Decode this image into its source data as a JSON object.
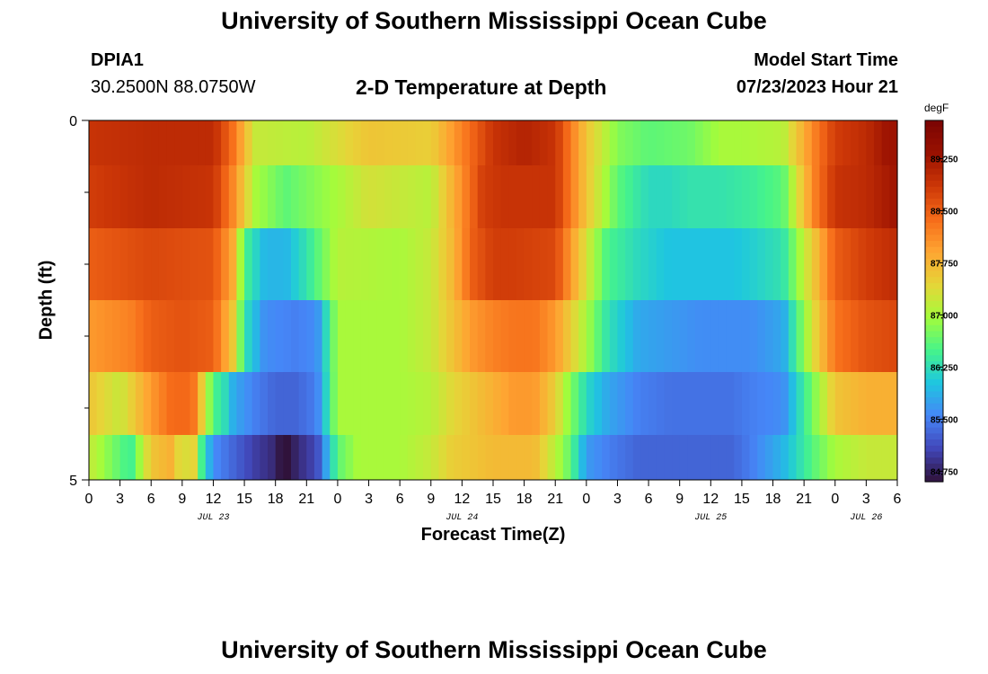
{
  "header": {
    "title": "University of Southern Mississippi Ocean Cube",
    "station": "DPIA1",
    "coords": "30.2500N  88.0750W",
    "subtitle": "2-D Temperature at Depth",
    "start_label": "Model Start Time",
    "start_value": "07/23/2023 Hour 21",
    "footer_title": "University of Southern Mississippi Ocean Cube"
  },
  "chart_data": {
    "type": "heatmap",
    "title": "2-D Temperature at Depth",
    "xlabel": "Forecast Time(Z)",
    "ylabel": "Depth (ft)",
    "x_ticks": [
      "0",
      "3",
      "6",
      "9",
      "12",
      "15",
      "18",
      "21",
      "0",
      "3",
      "6",
      "9",
      "12",
      "15",
      "18",
      "21",
      "0",
      "3",
      "6",
      "9",
      "12",
      "15",
      "18",
      "21",
      "0",
      "3",
      "6"
    ],
    "date_labels": [
      {
        "label": "JUL 23",
        "hour": 12
      },
      {
        "label": "JUL 24",
        "hour": 36
      },
      {
        "label": "JUL 25",
        "hour": 60
      },
      {
        "label": "JUL 26",
        "hour": 75
      }
    ],
    "x_range_hours": [
      0,
      78
    ],
    "y_range_ft": [
      0,
      5
    ],
    "y_ticks": [
      "0",
      "5"
    ],
    "depth_rows_ft": [
      0.25,
      1.0,
      2.0,
      3.0,
      4.0,
      4.75
    ],
    "colorbar": {
      "unit": "degF",
      "ticks": [
        "89.250",
        "88.500",
        "87.750",
        "87.000",
        "86.250",
        "85.500",
        "84.750"
      ],
      "range": [
        84.6,
        89.8
      ]
    },
    "row_profiles": [
      {
        "depth_ft": 0.25,
        "hours": [
          0,
          6,
          12,
          14,
          16,
          21,
          27,
          33,
          36,
          39,
          42,
          45,
          48,
          51,
          54,
          58,
          61,
          63,
          67,
          70,
          72,
          75,
          77
        ],
        "values": [
          88.9,
          89.0,
          89.0,
          88.3,
          87.2,
          87.1,
          87.6,
          87.5,
          88.2,
          88.9,
          89.1,
          88.9,
          87.6,
          86.8,
          86.6,
          86.7,
          87.0,
          87.0,
          87.1,
          88.2,
          88.8,
          89.0,
          89.3
        ]
      },
      {
        "depth_ft": 1.0,
        "hours": [
          0,
          6,
          12,
          14,
          16,
          19,
          24,
          27,
          33,
          36,
          38,
          40,
          45,
          48,
          51,
          54,
          56,
          58,
          61,
          64,
          67,
          70,
          72,
          75,
          78
        ],
        "values": [
          88.8,
          89.0,
          88.9,
          88.1,
          87.0,
          86.6,
          87.0,
          87.3,
          87.1,
          88.1,
          88.8,
          88.9,
          88.9,
          87.6,
          86.6,
          86.2,
          86.2,
          86.3,
          86.3,
          86.4,
          86.6,
          88.2,
          88.9,
          89.0,
          89.3
        ]
      },
      {
        "depth_ft": 2.0,
        "hours": [
          0,
          6,
          12,
          14,
          15,
          17,
          19,
          21,
          24,
          30,
          33,
          35,
          37,
          39,
          41,
          45,
          48,
          50,
          53,
          56,
          59,
          62,
          64,
          67,
          70,
          72,
          75,
          78
        ],
        "values": [
          88.5,
          88.7,
          88.6,
          87.8,
          86.5,
          85.9,
          85.9,
          86.3,
          87.1,
          87.0,
          87.2,
          87.7,
          88.5,
          88.8,
          88.8,
          88.7,
          87.3,
          86.5,
          86.2,
          86.0,
          86.0,
          86.0,
          86.1,
          86.3,
          87.6,
          88.5,
          88.8,
          89.0
        ]
      },
      {
        "depth_ft": 3.0,
        "hours": [
          0,
          4,
          6,
          9,
          12,
          14,
          15,
          17,
          20,
          22,
          24,
          27,
          30,
          33,
          35,
          37,
          39,
          41,
          43,
          45,
          48,
          50,
          53,
          56,
          59,
          62,
          64,
          67,
          70,
          72,
          75,
          78
        ],
        "values": [
          88.0,
          88.2,
          88.5,
          88.6,
          88.5,
          87.5,
          86.3,
          85.6,
          85.5,
          85.6,
          87.0,
          87.0,
          87.0,
          87.2,
          87.6,
          88.0,
          88.2,
          88.3,
          88.3,
          88.0,
          87.0,
          86.3,
          85.8,
          85.7,
          85.6,
          85.6,
          85.6,
          85.8,
          87.4,
          88.3,
          88.6,
          88.7
        ]
      },
      {
        "depth_ft": 4.0,
        "hours": [
          0,
          3,
          6,
          8,
          10,
          12,
          13,
          14,
          16,
          18,
          20,
          22,
          24,
          27,
          30,
          33,
          35,
          37,
          39,
          41,
          43,
          45,
          46,
          48,
          50,
          53,
          56,
          59,
          62,
          64,
          67,
          70,
          72,
          75,
          78
        ],
        "values": [
          87.6,
          87.2,
          88.0,
          88.4,
          88.4,
          86.5,
          86.3,
          85.8,
          85.5,
          85.3,
          85.3,
          85.5,
          87.0,
          87.0,
          87.0,
          87.1,
          87.4,
          87.6,
          87.8,
          88.0,
          88.0,
          87.5,
          87.0,
          86.2,
          85.8,
          85.5,
          85.4,
          85.4,
          85.4,
          85.5,
          85.6,
          86.8,
          87.6,
          87.8,
          87.8
        ]
      },
      {
        "depth_ft": 4.75,
        "hours": [
          0,
          2,
          4,
          6,
          8,
          9,
          10,
          11,
          12,
          14,
          16,
          18,
          19,
          20,
          22,
          24,
          26,
          30,
          33,
          35,
          37,
          39,
          41,
          43,
          45,
          46,
          47,
          48,
          50,
          53,
          56,
          59,
          62,
          64,
          67,
          70,
          72,
          75,
          78
        ],
        "values": [
          87.2,
          86.8,
          86.4,
          87.6,
          87.8,
          87.2,
          87.6,
          86.3,
          85.6,
          85.3,
          85.0,
          84.8,
          84.4,
          84.8,
          85.1,
          86.6,
          87.0,
          87.0,
          87.2,
          87.5,
          87.6,
          87.7,
          87.7,
          87.7,
          87.1,
          86.8,
          86.3,
          85.7,
          85.5,
          85.3,
          85.3,
          85.3,
          85.3,
          85.5,
          85.9,
          86.6,
          87.0,
          87.2,
          87.2
        ]
      }
    ]
  },
  "colors": {
    "colormap": [
      "#30123b",
      "#4146b8",
      "#4686f7",
      "#1ec6e0",
      "#46f48a",
      "#a4fc3b",
      "#e6d538",
      "#fea532",
      "#f66b19",
      "#cc3707",
      "#9a1101",
      "#7a0403"
    ]
  }
}
